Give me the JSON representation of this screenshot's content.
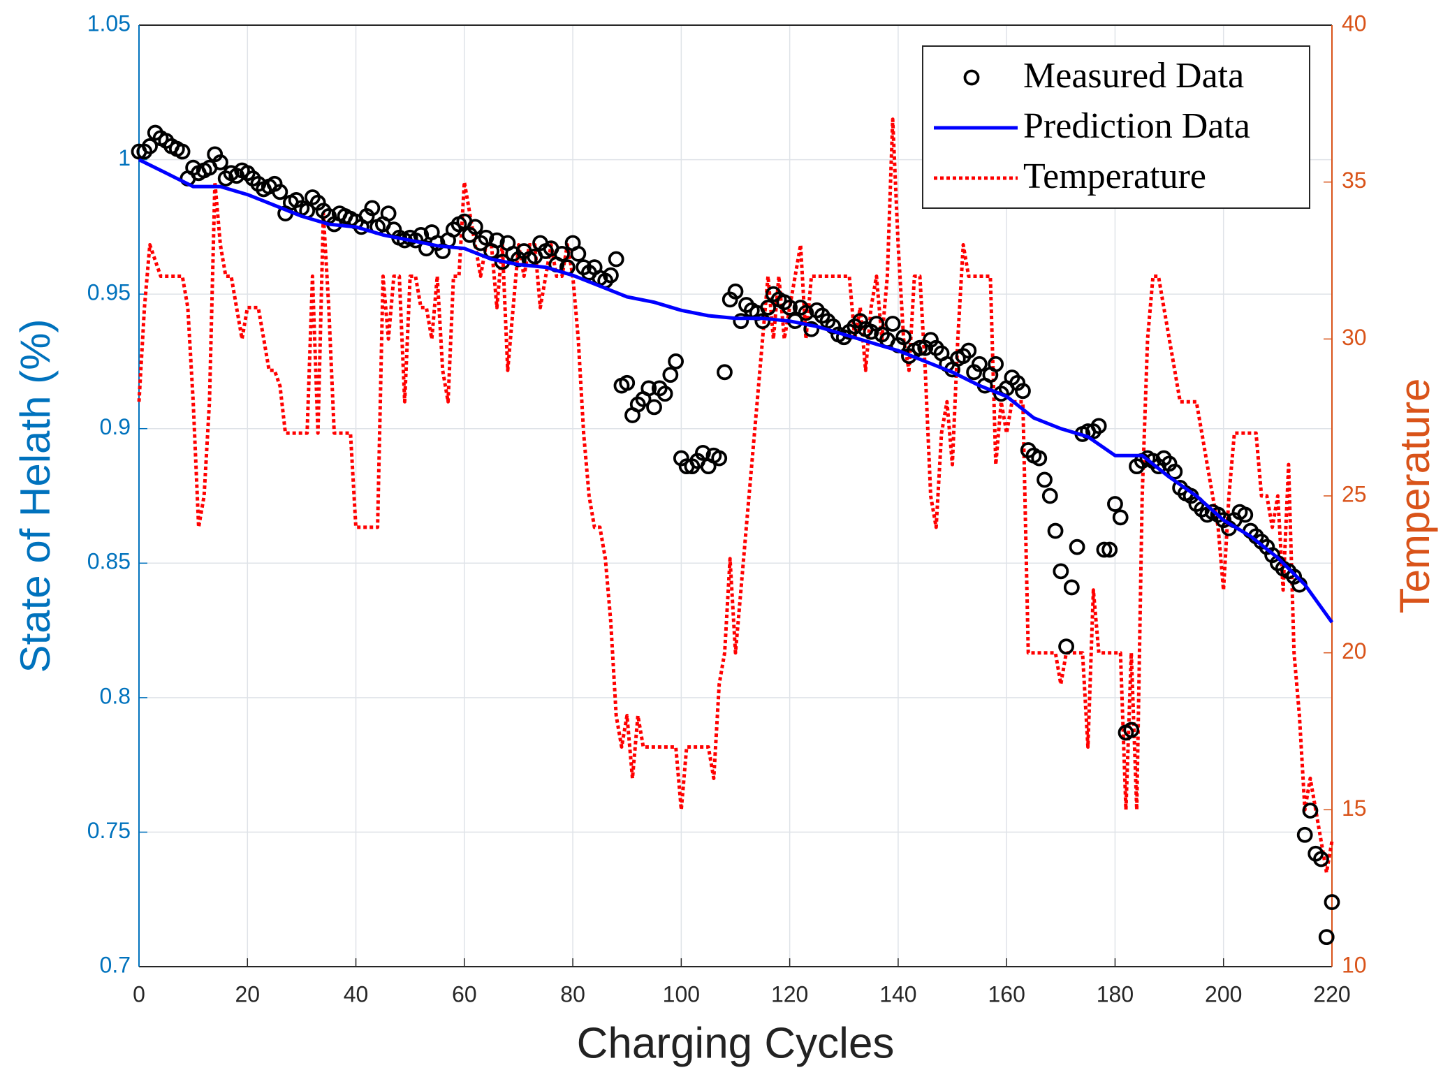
{
  "chart_data": {
    "type": "line",
    "xlabel": "Charging Cycles",
    "ylabel": "State of Helath (%)",
    "y2label": "Temperature",
    "xlim": [
      0,
      220
    ],
    "xticks": [
      0,
      20,
      40,
      60,
      80,
      100,
      120,
      140,
      160,
      180,
      200,
      220
    ],
    "ylim": [
      0.7,
      1.05
    ],
    "yticks": [
      0.7,
      0.75,
      0.8,
      0.85,
      0.9,
      0.95,
      1,
      1.05
    ],
    "y2lim": [
      10,
      40
    ],
    "y2ticks": [
      10,
      15,
      20,
      25,
      30,
      35,
      40
    ],
    "grid": true,
    "legend": "upper right",
    "ycolor": "#0072BD",
    "y2color": "#D95319",
    "x": [
      0,
      1,
      2,
      3,
      4,
      5,
      6,
      7,
      8,
      9,
      10,
      11,
      12,
      13,
      14,
      15,
      16,
      17,
      18,
      19,
      20,
      21,
      22,
      23,
      24,
      25,
      26,
      27,
      28,
      29,
      30,
      31,
      32,
      33,
      34,
      35,
      36,
      37,
      38,
      39,
      40,
      41,
      42,
      43,
      44,
      45,
      46,
      47,
      48,
      49,
      50,
      51,
      52,
      53,
      54,
      55,
      56,
      57,
      58,
      59,
      60,
      61,
      62,
      63,
      64,
      65,
      66,
      67,
      68,
      69,
      70,
      71,
      72,
      73,
      74,
      75,
      76,
      77,
      78,
      79,
      80,
      81,
      82,
      83,
      84,
      85,
      86,
      87,
      88,
      89,
      90,
      91,
      92,
      93,
      94,
      95,
      96,
      97,
      98,
      99,
      100,
      101,
      102,
      103,
      104,
      105,
      106,
      107,
      108,
      109,
      110,
      111,
      112,
      113,
      114,
      115,
      116,
      117,
      118,
      119,
      120,
      121,
      122,
      123,
      124,
      125,
      126,
      127,
      128,
      129,
      130,
      131,
      132,
      133,
      134,
      135,
      136,
      137,
      138,
      139,
      140,
      141,
      142,
      143,
      144,
      145,
      146,
      147,
      148,
      149,
      150,
      151,
      152,
      153,
      154,
      155,
      156,
      157,
      158,
      159,
      160,
      161,
      162,
      163,
      164,
      165,
      166,
      167,
      168,
      169,
      170,
      171,
      172,
      173,
      174,
      175,
      176,
      177,
      178,
      179,
      180,
      181,
      182,
      183,
      184,
      185,
      186,
      187,
      188,
      189,
      190,
      191,
      192,
      193,
      194,
      195,
      196,
      197,
      198,
      199,
      200,
      201,
      202,
      203,
      204,
      205,
      206,
      207,
      208,
      209,
      210,
      211,
      212,
      213,
      214,
      215,
      216,
      217,
      218,
      219,
      220
    ],
    "series": [
      {
        "name": "Measured Data",
        "mode": "markers",
        "color": "#000000",
        "values": [
          1.003,
          1.003,
          1.005,
          1.01,
          1.008,
          1.007,
          1.005,
          1.004,
          1.003,
          0.993,
          0.997,
          0.995,
          0.996,
          0.997,
          1.002,
          0.999,
          0.993,
          0.995,
          0.994,
          0.996,
          0.995,
          0.993,
          0.991,
          0.989,
          0.99,
          0.991,
          0.988,
          0.98,
          0.984,
          0.985,
          0.982,
          0.981,
          0.986,
          0.984,
          0.981,
          0.979,
          0.976,
          0.98,
          0.979,
          0.978,
          0.977,
          0.975,
          0.979,
          0.982,
          0.975,
          0.976,
          0.98,
          0.974,
          0.971,
          0.97,
          0.971,
          0.97,
          0.972,
          0.967,
          0.973,
          0.969,
          0.966,
          0.97,
          0.974,
          0.976,
          0.977,
          0.972,
          0.975,
          0.969,
          0.971,
          0.966,
          0.97,
          0.962,
          0.969,
          0.965,
          0.963,
          0.966,
          0.963,
          0.964,
          0.969,
          0.966,
          0.967,
          0.961,
          0.965,
          0.96,
          0.969,
          0.965,
          0.96,
          0.958,
          0.96,
          0.956,
          0.955,
          0.957,
          0.963,
          0.916,
          0.917,
          0.905,
          0.909,
          0.911,
          0.915,
          0.908,
          0.915,
          0.913,
          0.92,
          0.925,
          0.889,
          0.886,
          0.886,
          0.888,
          0.891,
          0.886,
          0.89,
          0.889,
          0.921,
          0.948,
          0.951,
          0.94,
          0.946,
          0.944,
          0.943,
          0.94,
          0.945,
          0.95,
          0.948,
          0.947,
          0.945,
          0.94,
          0.945,
          0.943,
          0.937,
          0.944,
          0.942,
          0.94,
          0.938,
          0.935,
          0.934,
          0.936,
          0.938,
          0.94,
          0.937,
          0.936,
          0.939,
          0.935,
          0.933,
          0.939,
          0.931,
          0.934,
          0.927,
          0.929,
          0.93,
          0.93,
          0.933,
          0.93,
          0.928,
          0.924,
          0.922,
          0.926,
          0.927,
          0.929,
          0.921,
          0.924,
          0.916,
          0.92,
          0.924,
          0.913,
          0.915,
          0.919,
          0.917,
          0.914,
          0.892,
          0.89,
          0.889,
          0.881,
          0.875,
          0.862,
          0.847,
          0.819,
          0.841,
          0.856,
          0.898,
          0.899,
          0.899,
          0.901,
          0.855,
          0.855,
          0.872,
          0.867,
          0.787,
          0.788,
          0.886,
          0.888,
          0.889,
          0.888,
          0.886,
          0.889,
          0.887,
          0.884,
          0.878,
          0.876,
          0.875,
          0.872,
          0.87,
          0.868,
          0.869,
          0.868,
          0.866,
          0.863,
          0.866,
          0.869,
          0.868,
          0.862,
          0.86,
          0.858,
          0.856,
          0.853,
          0.85,
          0.848,
          0.847,
          0.845,
          0.842,
          0.749,
          0.758,
          0.742,
          0.74,
          0.711,
          0.724
        ]
      },
      {
        "name": "Prediction Data",
        "mode": "solid",
        "color": "#0000FF",
        "x": [
          0,
          5,
          10,
          15,
          20,
          25,
          30,
          35,
          40,
          45,
          50,
          55,
          60,
          65,
          70,
          75,
          80,
          85,
          90,
          95,
          100,
          105,
          110,
          115,
          120,
          125,
          130,
          135,
          140,
          145,
          150,
          155,
          160,
          165,
          170,
          175,
          180,
          185,
          190,
          195,
          200,
          205,
          210,
          215,
          220
        ],
        "values": [
          1.0,
          0.995,
          0.99,
          0.99,
          0.987,
          0.983,
          0.979,
          0.976,
          0.975,
          0.972,
          0.97,
          0.968,
          0.967,
          0.963,
          0.961,
          0.96,
          0.957,
          0.953,
          0.949,
          0.947,
          0.944,
          0.942,
          0.941,
          0.941,
          0.94,
          0.938,
          0.935,
          0.932,
          0.929,
          0.925,
          0.921,
          0.916,
          0.912,
          0.904,
          0.9,
          0.897,
          0.89,
          0.89,
          0.882,
          0.875,
          0.866,
          0.86,
          0.852,
          0.842,
          0.828
        ]
      },
      {
        "name": "Temperature",
        "mode": "dotted",
        "color": "#FF0000",
        "axis": "y2",
        "values": [
          28,
          31,
          33,
          32.5,
          32,
          32,
          32,
          32,
          32,
          31,
          28,
          24,
          25,
          28,
          35,
          33,
          32,
          32,
          31,
          30,
          31,
          31,
          31,
          30,
          29,
          29,
          28.5,
          27,
          27,
          27,
          27,
          27,
          32,
          27,
          34,
          31,
          27,
          27,
          27,
          27,
          24,
          24,
          24,
          24,
          24,
          32,
          30,
          32,
          32,
          28,
          32,
          32,
          31,
          31,
          30,
          32,
          29,
          28,
          32,
          32,
          35,
          34,
          33,
          32,
          33,
          33,
          31,
          33,
          29,
          31,
          33,
          32,
          33,
          33,
          31,
          32,
          33,
          32,
          32,
          33,
          32,
          30,
          27,
          25,
          24,
          24,
          23,
          21,
          18,
          17,
          18,
          16,
          18,
          17,
          17,
          17,
          17,
          17,
          17,
          17,
          15,
          17,
          17,
          17,
          17,
          17,
          16,
          19,
          20,
          23,
          20,
          22,
          24,
          26,
          28,
          30,
          32,
          30,
          32,
          30,
          31,
          32,
          33,
          30,
          32,
          32,
          32,
          32,
          32,
          32,
          32,
          32,
          30,
          31,
          29,
          31,
          32,
          30,
          32,
          37,
          33,
          30,
          29,
          32,
          32,
          29,
          25,
          24,
          27,
          28,
          26,
          30,
          33,
          32,
          32,
          32,
          32,
          32,
          26,
          28,
          27,
          28,
          28,
          28,
          20,
          20,
          20,
          20,
          20,
          20,
          19,
          20,
          20,
          20,
          20,
          17,
          22,
          20,
          20,
          20,
          20,
          20,
          15,
          20,
          15,
          25,
          30,
          32,
          32,
          31,
          30,
          29,
          28,
          28,
          28,
          28,
          27,
          26,
          25,
          24,
          22,
          25,
          27,
          27,
          27,
          27,
          27,
          25,
          25,
          24,
          25,
          22,
          26,
          20,
          18,
          15,
          16,
          15,
          14,
          13,
          14
        ]
      }
    ]
  }
}
